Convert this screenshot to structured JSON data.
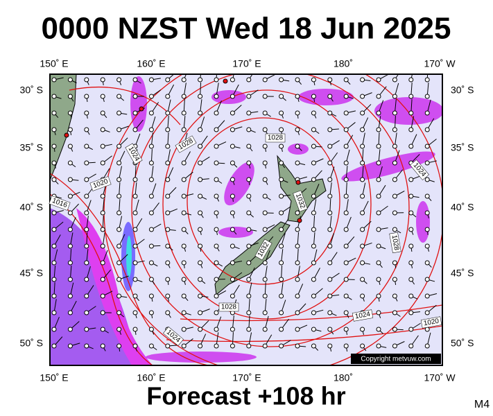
{
  "header": {
    "title": "0000 NZST Wed 18 Jun 2025"
  },
  "map": {
    "lon_labels": [
      "150˚ E",
      "160˚ E",
      "170˚ E",
      "180˚",
      "170˚ W"
    ],
    "lat_labels": [
      "30˚ S",
      "35˚ S",
      "40˚ S",
      "45˚ S",
      "50˚ S"
    ],
    "isobar_labels": [
      "1028",
      "1024",
      "1020",
      "1016",
      "1028",
      "1032",
      "1032",
      "1028",
      "1024",
      "1020",
      "1024",
      "1024",
      "1028"
    ],
    "copyright": "Copyright metvuw.com"
  },
  "footer": {
    "forecast": "Forecast +108 hr",
    "code": "M4"
  }
}
